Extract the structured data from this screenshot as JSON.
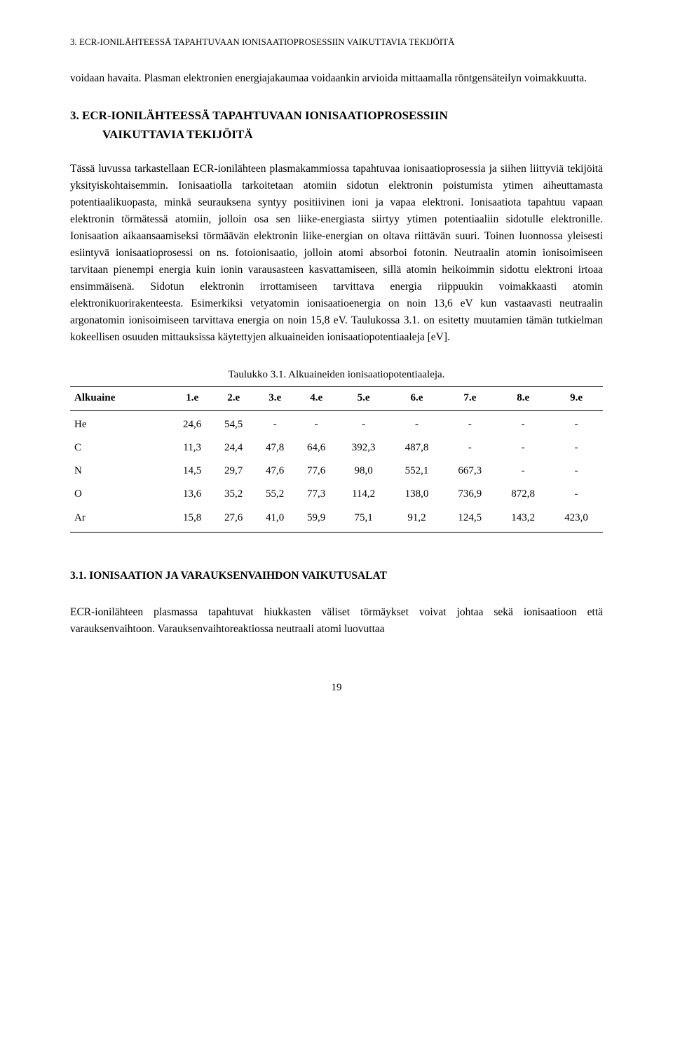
{
  "header": "3. ECR-IONILÄHTEESSÄ TAPAHTUVAAN IONISAATIOPROSESSIIN VAIKUTTAVIA TEKIJÖITÄ",
  "intro_para": "voidaan havaita. Plasman elektronien energiajakaumaa voidaankin arvioida mittaamalla röntgensäteilyn voimakkuutta.",
  "section_number": "3.",
  "section_title_line1": "ECR-IONILÄHTEESSÄ TAPAHTUVAAN IONISAATIOPROSESSIIN",
  "section_title_line2": "VAIKUTTAVIA TEKIJÖITÄ",
  "main_para": "Tässä luvussa tarkastellaan ECR-ionilähteen plasmakammiossa tapahtuvaa ionisaatioprosessia ja siihen liittyviä tekijöitä yksityiskohtaisemmin. Ionisaatiolla tarkoitetaan atomiin sidotun elektronin poistumista ytimen aiheuttamasta potentiaalikuopasta, minkä seurauksena syntyy positiivinen ioni ja vapaa elektroni. Ionisaatiota tapahtuu vapaan elektronin törmätessä atomiin, jolloin osa sen liike-energiasta siirtyy ytimen potentiaaliin sidotulle elektronille. Ionisaation aikaansaamiseksi törmäävän elektronin liike-energian on oltava riittävän suuri. Toinen luonnossa yleisesti esiintyvä ionisaatioprosessi on ns. fotoionisaatio, jolloin atomi absorboi fotonin. Neutraalin atomin ionisoimiseen tarvitaan pienempi energia kuin ionin varausasteen kasvattamiseen, sillä atomin heikoimmin sidottu elektroni irtoaa ensimmäisenä. Sidotun elektronin irrottamiseen tarvittava energia riippuukin voimakkaasti atomin elektronikuorirakenteesta. Esimerkiksi vetyatomin ionisaatioenergia on noin 13,6 eV kun vastaavasti neutraalin argonatomin ionisoimiseen tarvittava energia on noin 15,8 eV. Taulukossa 3.1. on esitetty muutamien tämän tutkielman kokeellisen osuuden mittauksissa käytettyjen alkuaineiden ionisaatiopotentiaaleja [eV].",
  "table": {
    "caption": "Taulukko 3.1. Alkuaineiden ionisaatiopotentiaaleja.",
    "columns": [
      "Alkuaine",
      "1.e",
      "2.e",
      "3.e",
      "4.e",
      "5.e",
      "6.e",
      "7.e",
      "8.e",
      "9.e"
    ],
    "rows": [
      [
        "He",
        "24,6",
        "54,5",
        "-",
        "-",
        "-",
        "-",
        "-",
        "-",
        "-"
      ],
      [
        "C",
        "11,3",
        "24,4",
        "47,8",
        "64,6",
        "392,3",
        "487,8",
        "-",
        "-",
        "-"
      ],
      [
        "N",
        "14,5",
        "29,7",
        "47,6",
        "77,6",
        "98,0",
        "552,1",
        "667,3",
        "-",
        "-"
      ],
      [
        "O",
        "13,6",
        "35,2",
        "55,2",
        "77,3",
        "114,2",
        "138,0",
        "736,9",
        "872,8",
        "-"
      ],
      [
        "Ar",
        "15,8",
        "27,6",
        "41,0",
        "59,9",
        "75,1",
        "91,2",
        "124,5",
        "143,2",
        "423,0"
      ]
    ]
  },
  "subsection_title": "3.1. IONISAATION JA VARAUKSENVAIHDON VAIKUTUSALAT",
  "closing_para": "ECR-ionilähteen plasmassa tapahtuvat hiukkasten väliset törmäykset voivat johtaa sekä ionisaatioon että varauksenvaihtoon. Varauksenvaihtoreaktiossa neutraali atomi luovuttaa",
  "page_number": "19"
}
